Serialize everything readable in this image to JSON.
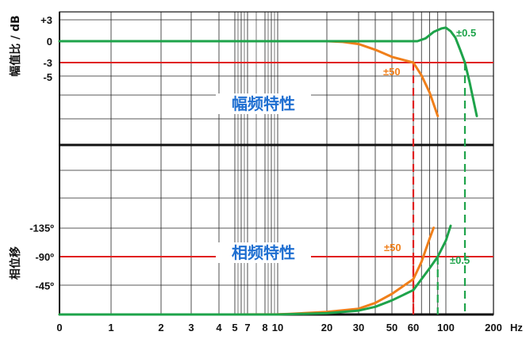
{
  "chart_data": [
    {
      "type": "line",
      "title": "幅频特性",
      "ylabel": "幅值比 / dB",
      "xlabel": "Hz",
      "x_scale": "nonuniform (log-like)",
      "x_ticks": [
        0,
        1,
        2,
        3,
        4,
        5,
        7,
        8,
        10,
        20,
        30,
        50,
        60,
        100,
        200
      ],
      "x_tick_labels": [
        "0",
        "1",
        "2",
        "3",
        "4",
        "5",
        "7",
        "8",
        "10",
        "20",
        "30",
        "50",
        "60",
        "100",
        "200"
      ],
      "y_ticks": [
        3,
        0,
        -3,
        -5
      ],
      "y_tick_labels": [
        "+3",
        "0",
        "-3",
        "-5"
      ],
      "reference_line": {
        "value": -3,
        "color": "#e02020"
      },
      "grid": true,
      "series": [
        {
          "name": "±50",
          "color": "#f07f1a",
          "points": [
            [
              0,
              0
            ],
            [
              1,
              0
            ],
            [
              2,
              0
            ],
            [
              3,
              0
            ],
            [
              4,
              0
            ],
            [
              5,
              0
            ],
            [
              7,
              0
            ],
            [
              10,
              0
            ],
            [
              20,
              0
            ],
            [
              25,
              -0.1
            ],
            [
              30,
              -0.4
            ],
            [
              40,
              -1.2
            ],
            [
              50,
              -2.2
            ],
            [
              60,
              -3.0
            ],
            [
              70,
              -4.8
            ],
            [
              80,
              -7.2
            ],
            [
              90,
              -10.5
            ]
          ]
        },
        {
          "name": "±0.5",
          "color": "#1ea34a",
          "points": [
            [
              0,
              0
            ],
            [
              1,
              0
            ],
            [
              2,
              0
            ],
            [
              3,
              0
            ],
            [
              5,
              0
            ],
            [
              10,
              0
            ],
            [
              20,
              0
            ],
            [
              30,
              0
            ],
            [
              50,
              0
            ],
            [
              65,
              0
            ],
            [
              75,
              0.4
            ],
            [
              85,
              1.3
            ],
            [
              95,
              1.8
            ],
            [
              100,
              1.9
            ],
            [
              110,
              1.4
            ],
            [
              120,
              0.5
            ],
            [
              130,
              -1.2
            ],
            [
              140,
              -3.0
            ],
            [
              150,
              -5.8
            ],
            [
              165,
              -10.5
            ]
          ]
        }
      ],
      "markers": [
        {
          "x": 60,
          "color": "#e02020"
        },
        {
          "x": 140,
          "color": "#1ea34a"
        }
      ]
    },
    {
      "type": "line",
      "title": "相频特性",
      "ylabel": "相位移",
      "xlabel": "Hz",
      "x_scale": "nonuniform (log-like)",
      "y_ticks": [
        -135,
        -90,
        -45
      ],
      "y_tick_labels": [
        "-135º",
        "-90º",
        "-45º"
      ],
      "reference_line": {
        "value": -90,
        "color": "#e02020"
      },
      "grid": true,
      "series": [
        {
          "name": "±50",
          "color": "#f07f1a",
          "points": [
            [
              0,
              0
            ],
            [
              5,
              0
            ],
            [
              10,
              -0.3
            ],
            [
              12,
              -0.8
            ],
            [
              20,
              -4
            ],
            [
              30,
              -9
            ],
            [
              40,
              -18
            ],
            [
              50,
              -32
            ],
            [
              60,
              -55
            ],
            [
              70,
              -82
            ],
            [
              75,
              -100
            ],
            [
              80,
              -118
            ],
            [
              85,
              -135
            ]
          ]
        },
        {
          "name": "±0.5",
          "color": "#1ea34a",
          "points": [
            [
              0,
              0
            ],
            [
              10,
              0
            ],
            [
              20,
              -2
            ],
            [
              30,
              -6
            ],
            [
              40,
              -12
            ],
            [
              50,
              -22
            ],
            [
              60,
              -38
            ],
            [
              70,
              -55
            ],
            [
              80,
              -72
            ],
            [
              90,
              -90
            ],
            [
              100,
              -115
            ],
            [
              110,
              -138
            ]
          ]
        }
      ],
      "markers": [
        {
          "x": 60,
          "color": "#e02020"
        },
        {
          "x": 90,
          "color": "#1ea34a"
        }
      ]
    }
  ]
}
